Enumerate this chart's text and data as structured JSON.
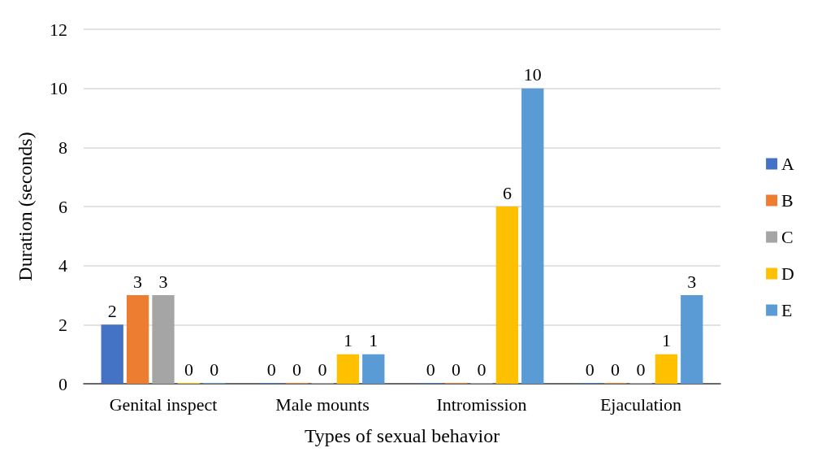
{
  "chart_data": {
    "type": "bar",
    "xlabel": "Types of sexual behavior",
    "ylabel": "Duration (seconds)",
    "categories": [
      "Genital inspect",
      "Male mounts",
      "Intromission",
      "Ejaculation"
    ],
    "series": [
      {
        "name": "A",
        "color": "#4472c4",
        "values": [
          2,
          0,
          0,
          0
        ]
      },
      {
        "name": "B",
        "color": "#ed7d31",
        "values": [
          3,
          0,
          0,
          0
        ]
      },
      {
        "name": "C",
        "color": "#a5a5a5",
        "values": [
          3,
          0,
          0,
          0
        ]
      },
      {
        "name": "D",
        "color": "#ffc000",
        "values": [
          0,
          1,
          6,
          1
        ]
      },
      {
        "name": "E",
        "color": "#5b9bd5",
        "values": [
          0,
          1,
          10,
          3
        ]
      }
    ],
    "ylim": [
      0,
      12
    ],
    "yticks": [
      0,
      2,
      4,
      6,
      8,
      10,
      12
    ],
    "grid": "y",
    "legend": "right",
    "data_labels": true
  }
}
